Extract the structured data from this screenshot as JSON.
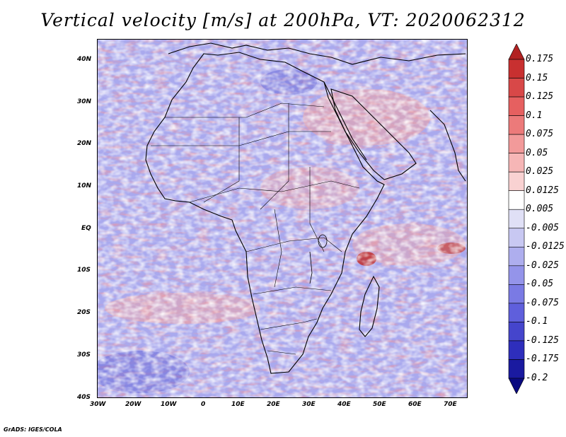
{
  "title": "Vertical velocity [m/s] at 200hPa, VT: 2020062312",
  "credit": "GrADS: IGES/COLA",
  "map": {
    "lat_labels": [
      "40N",
      "30N",
      "20N",
      "10N",
      "EQ",
      "10S",
      "20S",
      "30S",
      "40S"
    ],
    "lon_labels": [
      "30W",
      "20W",
      "10W",
      "0",
      "10E",
      "20E",
      "30E",
      "40E",
      "50E",
      "60E",
      "70E"
    ],
    "extent": {
      "lon": [
        -30,
        75
      ],
      "lat": [
        -40,
        45
      ]
    }
  },
  "colorbar": {
    "labels": [
      "0.175",
      "0.15",
      "0.125",
      "0.1",
      "0.075",
      "0.05",
      "0.025",
      "0.0125",
      "0.005",
      "-0.005",
      "-0.0125",
      "-0.025",
      "-0.05",
      "-0.075",
      "-0.1",
      "-0.125",
      "-0.175",
      "-0.2"
    ],
    "colors": [
      "#b22222",
      "#c83030",
      "#d84848",
      "#e66060",
      "#ec7a7a",
      "#f29a9a",
      "#f6b6b6",
      "#f9d2d2",
      "#ffffff",
      "#e0e0f6",
      "#c8c8f2",
      "#aeaeee",
      "#9494ea",
      "#7a7ae4",
      "#5f5fdc",
      "#4545cc",
      "#2e2ebc",
      "#1a1aa0",
      "#0a0a80"
    ]
  }
}
